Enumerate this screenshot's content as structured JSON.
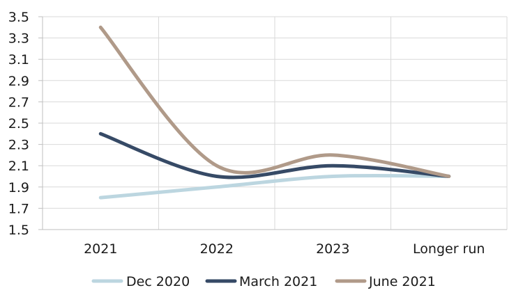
{
  "chart_data": {
    "type": "line",
    "categories": [
      "2021",
      "2022",
      "2023",
      "Longer run"
    ],
    "series": [
      {
        "name": "Dec 2020",
        "values": [
          1.8,
          1.9,
          2.0,
          2.0
        ],
        "color": "#bcd6e0"
      },
      {
        "name": "March 2021",
        "values": [
          2.4,
          2.0,
          2.1,
          2.0
        ],
        "color": "#364a66"
      },
      {
        "name": "June 2021",
        "values": [
          3.4,
          2.1,
          2.2,
          2.0
        ],
        "color": "#b09a89"
      }
    ],
    "y_ticks": [
      "3.5",
      "3.3",
      "3.1",
      "2.9",
      "2.7",
      "2.5",
      "2.3",
      "2.1",
      "1.9",
      "1.7",
      "1.5"
    ],
    "ylim": [
      1.5,
      3.5
    ],
    "grid": true,
    "smooth": true,
    "legend_position": "bottom",
    "colors": {
      "grid": "#d9d9d9",
      "axis": "#bfbfbf",
      "text": "#1a1a1a"
    }
  }
}
